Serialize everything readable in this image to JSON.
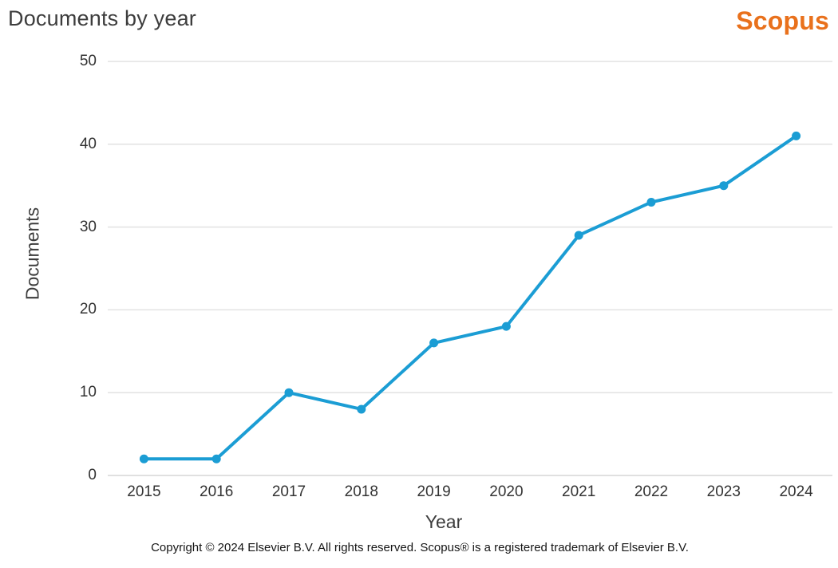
{
  "header": {
    "title": "Documents by year",
    "logo_text": "Scopus"
  },
  "footer": {
    "copyright": "Copyright © 2024 Elsevier B.V. All rights reserved. Scopus® is a registered trademark of Elsevier B.V."
  },
  "colors": {
    "line": "#1B9DD4",
    "logo_orange": "#E9711C",
    "title_text": "#3D3D3D",
    "tick_text": "#333333",
    "gridline": "#E2E2E2",
    "baseline": "#D6D6D6"
  },
  "chart_data": {
    "type": "line",
    "title": "Documents by year",
    "xlabel": "Year",
    "ylabel": "Documents",
    "categories": [
      "2015",
      "2016",
      "2017",
      "2018",
      "2019",
      "2020",
      "2021",
      "2022",
      "2023",
      "2024"
    ],
    "series": [
      {
        "name": "Documents",
        "values": [
          2,
          2,
          10,
          8,
          16,
          18,
          29,
          33,
          35,
          41
        ]
      }
    ],
    "ylim": [
      0,
      50
    ],
    "yticks": [
      0,
      10,
      20,
      30,
      40,
      50
    ],
    "grid": "horizontal-only",
    "legend_position": "none",
    "marker": "circle"
  }
}
